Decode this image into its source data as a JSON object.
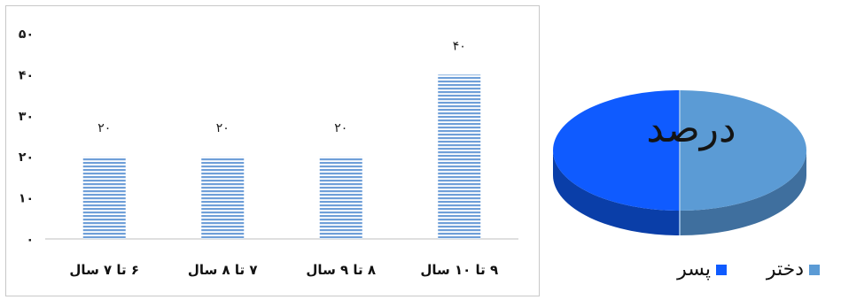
{
  "chart_data": [
    {
      "type": "bar",
      "categories": [
        "۹ تا ۱۰ سال",
        "۸ تا ۹ سال",
        "۷ تا ۸ سال",
        "۶ تا ۷ سال"
      ],
      "values": [
        40,
        20,
        20,
        20
      ],
      "value_labels": [
        "۴۰",
        "۲۰",
        "۲۰",
        "۲۰"
      ],
      "y_ticks": [
        "۰",
        "۱۰",
        "۲۰",
        "۳۰",
        "۴۰",
        "۵۰"
      ],
      "ylim": [
        0,
        50
      ],
      "bar_color": "#6f9fd8",
      "grid": false
    },
    {
      "type": "pie",
      "title": "درصد",
      "slices": [
        {
          "label": "دختر",
          "value": 50,
          "color": "#5b9bd5"
        },
        {
          "label": "پسر",
          "value": 50,
          "color": "#0f5bff"
        }
      ],
      "legend_placement": "bottom"
    }
  ]
}
